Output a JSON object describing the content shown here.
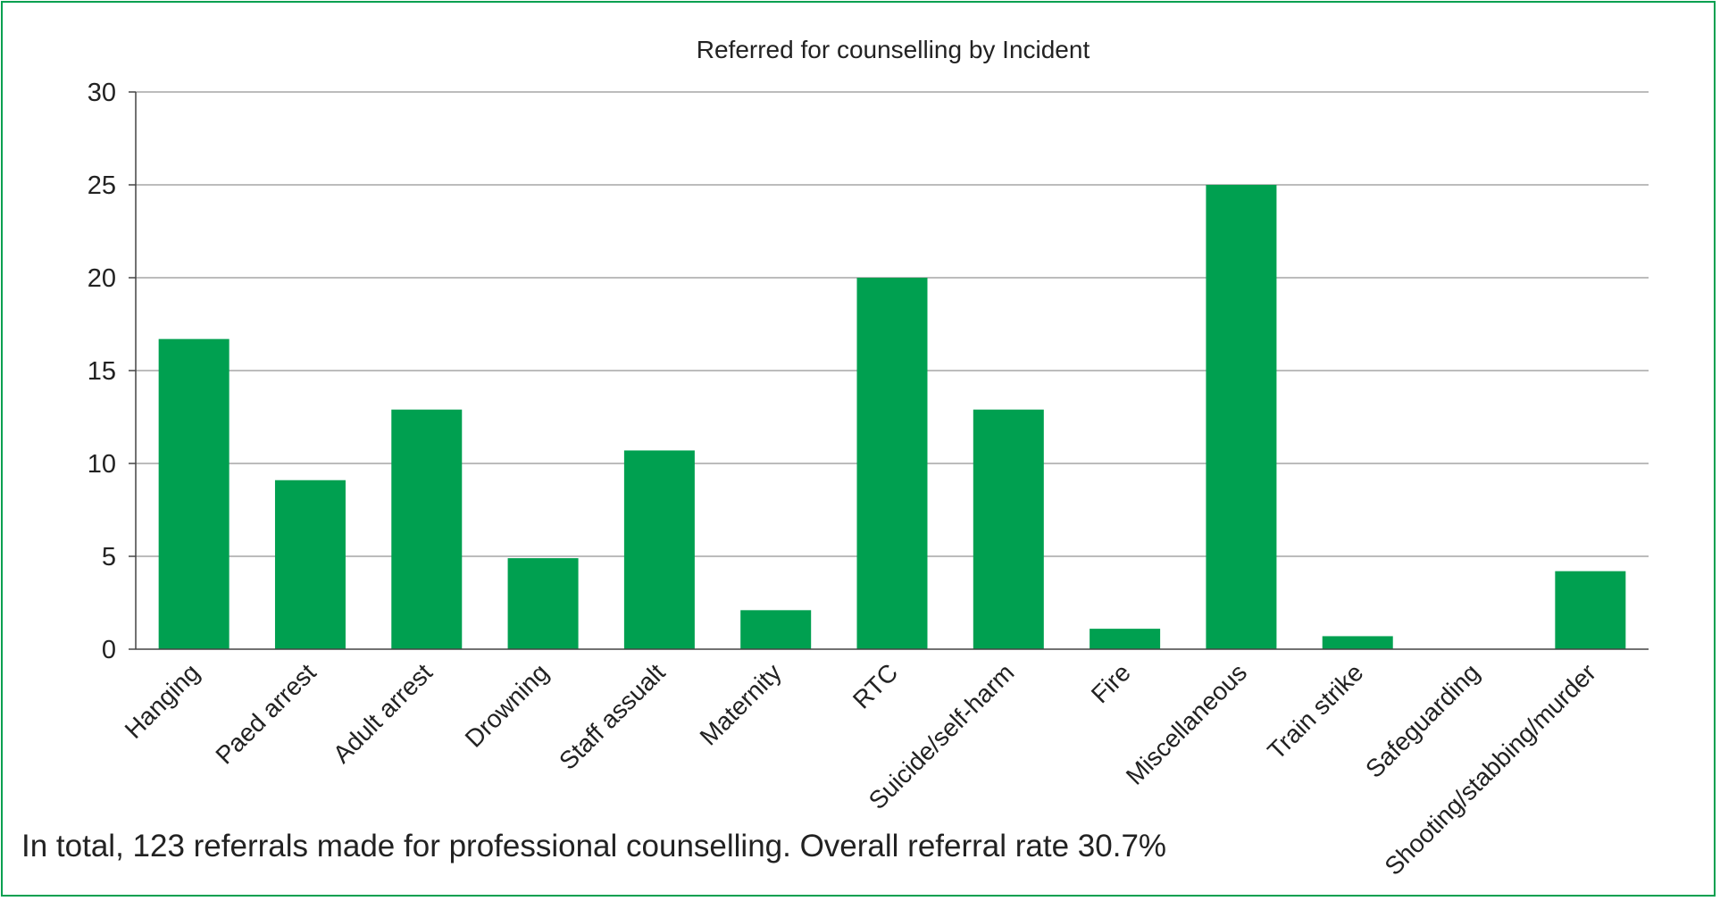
{
  "chart_data": {
    "type": "bar",
    "title": "Referred for counselling by Incident",
    "xlabel": "",
    "ylabel": "",
    "categories": [
      "Hanging",
      "Paed arrest",
      "Adult arrest",
      "Drowning",
      "Staff assualt",
      "Maternity",
      "RTC",
      "Suicide/self-harm",
      "Fire",
      "Miscellaneous",
      "Train strike",
      "Safeguarding",
      "Shooting/stabbing/murder"
    ],
    "values": [
      16.7,
      9.1,
      12.9,
      4.9,
      10.7,
      2.1,
      20,
      12.9,
      1.1,
      25,
      0.7,
      0,
      4.2
    ],
    "yticks": [
      "0",
      "5",
      "10",
      "15",
      "20",
      "25",
      "30"
    ],
    "ylim": [
      0,
      30
    ],
    "grid": true,
    "bar_color": "#00a050",
    "grid_color": "#a6a6a6",
    "legend": "none"
  },
  "footnote": "In total, 123 referrals made for professional counselling. Overall referral rate 30.7%",
  "frame_color": "#00a050"
}
